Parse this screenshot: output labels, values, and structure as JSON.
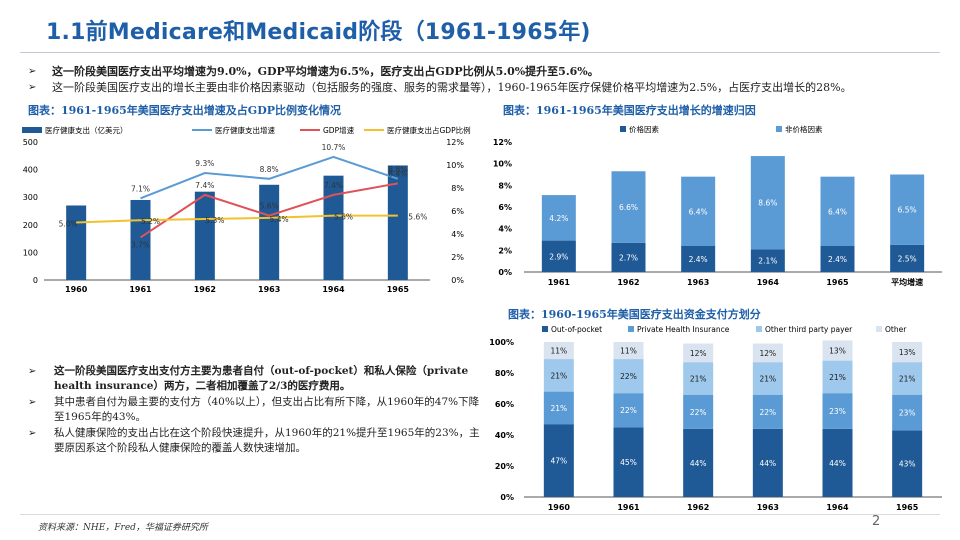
{
  "title": "1.1前Medicare和Medicaid阶段（1961-1965年)",
  "bullets": [
    "这一阶段美国医疗支出平均增速为9.0%，GDP平均增速为6.5%，医疗支出占GDP比例从5.0%提升至5.6%。",
    "这一阶段美国医疗支出的增长主要由非价格因素驱动（包括服务的强度、服务的需求量等），1960-1965年医疗保健价格平均增速为2.5%，占医疗支出增长的28%。"
  ],
  "bullet_mark": "➢",
  "paragraphs": [
    "这一阶段美国医疗支出支付方主要为患者自付（out-of-pocket）和私人保险（private health insurance）两方，二者相加覆盖了2/3的医疗费用。",
    "其中患者自付为最主要的支付方（40%以上），但支出占比有所下降，从1960年的47%下降至1965年的43%。",
    "私人健康保险的支出占比在这个阶段快速提升，从1960年的21%提升至1965年的23%，主要原因系这个阶段私人健康保险的覆盖人数快速增加。"
  ],
  "source": "资料来源：NHE，Fred，华福证券研究所",
  "page_number": "2",
  "colors": {
    "dark_blue": "#1f5a96",
    "light_blue": "#5b9bd5",
    "red": "#e0525a",
    "yellow": "#f2c12e",
    "sky": "#9fc9ec",
    "pale": "#d9e4f0",
    "title": "#1f5fa8"
  },
  "chart_data": [
    {
      "type": "bar",
      "title": "图表：1961-1965年美国医疗支出增速及占GDP比例变化情况",
      "categories": [
        "1960",
        "1961",
        "1962",
        "1963",
        "1964",
        "1965"
      ],
      "series": [
        {
          "name": "医疗健康支出（亿美元）",
          "kind": "bar",
          "axis": "left",
          "values": [
            270,
            290,
            320,
            345,
            378,
            415
          ]
        },
        {
          "name": "医疗健康支出增速",
          "kind": "line",
          "axis": "right",
          "values": [
            null,
            7.1,
            9.3,
            8.8,
            10.7,
            8.8
          ]
        },
        {
          "name": "GDP增速",
          "kind": "line",
          "axis": "right",
          "values": [
            null,
            3.7,
            7.4,
            5.6,
            7.4,
            8.4
          ]
        },
        {
          "name": "医疗健康支出占GDP比例",
          "kind": "line",
          "axis": "right",
          "values": [
            5.0,
            5.2,
            5.3,
            5.4,
            5.6,
            5.6
          ]
        }
      ],
      "data_labels": {
        "医疗健康支出增速": [
          "",
          "7.1%",
          "9.3%",
          "8.8%",
          "10.7%",
          "8.8%"
        ],
        "GDP增速": [
          "",
          "3.7%",
          "7.4%",
          "5.6%",
          "7.4%",
          "8.4%"
        ],
        "医疗健康支出占GDP比例": [
          "5.0%",
          "5.2%",
          "5.3%",
          "5.4%",
          "5.6%",
          "5.6%"
        ]
      },
      "ylim_left": [
        0,
        500
      ],
      "yticks_left": [
        "0",
        "100",
        "200",
        "300",
        "400",
        "500"
      ],
      "ylim_right": [
        0,
        12
      ],
      "yticks_right": [
        "0%",
        "2%",
        "4%",
        "6%",
        "8%",
        "10%",
        "12%"
      ],
      "legend": "top",
      "grid": false
    },
    {
      "type": "bar",
      "stacked": true,
      "title": "图表：1961-1965年美国医疗支出增长的增速归因",
      "categories": [
        "1961",
        "1962",
        "1963",
        "1964",
        "1965",
        "平均增速"
      ],
      "series": [
        {
          "name": "价格因素",
          "values": [
            2.9,
            2.7,
            2.4,
            2.1,
            2.4,
            2.5
          ],
          "labels": [
            "2.9%",
            "2.7%",
            "2.4%",
            "2.1%",
            "2.4%",
            "2.5%"
          ]
        },
        {
          "name": "非价格因素",
          "values": [
            4.2,
            6.6,
            6.4,
            8.6,
            6.4,
            6.5
          ],
          "labels": [
            "4.2%",
            "6.6%",
            "6.4%",
            "8.6%",
            "6.4%",
            "6.5%"
          ]
        }
      ],
      "ylim": [
        0,
        12
      ],
      "yticks": [
        "0%",
        "2%",
        "4%",
        "6%",
        "8%",
        "10%",
        "12%"
      ],
      "legend": "top",
      "grid": false
    },
    {
      "type": "bar",
      "stacked": true,
      "title": "图表：1960-1965年美国医疗支出资金支付方划分",
      "categories": [
        "1960",
        "1961",
        "1962",
        "1963",
        "1964",
        "1965"
      ],
      "series": [
        {
          "name": "Out-of-pocket",
          "values": [
            47,
            45,
            44,
            44,
            44,
            43
          ],
          "labels": [
            "47%",
            "45%",
            "44%",
            "44%",
            "44%",
            "43%"
          ]
        },
        {
          "name": "Private Health Insurance",
          "values": [
            21,
            22,
            22,
            22,
            23,
            23
          ],
          "labels": [
            "21%",
            "22%",
            "22%",
            "22%",
            "23%",
            "23%"
          ]
        },
        {
          "name": "Other third party payer",
          "values": [
            21,
            22,
            21,
            21,
            21,
            21
          ],
          "labels": [
            "21%",
            "22%",
            "21%",
            "21%",
            "21%",
            "21%"
          ]
        },
        {
          "name": "Other",
          "values": [
            11,
            11,
            12,
            12,
            13,
            13
          ],
          "labels": [
            "11%",
            "11%",
            "12%",
            "12%",
            "13%",
            "13%"
          ]
        }
      ],
      "ylim": [
        0,
        100
      ],
      "yticks": [
        "0%",
        "20%",
        "40%",
        "60%",
        "80%",
        "100%"
      ],
      "legend": "top",
      "grid": false
    }
  ]
}
